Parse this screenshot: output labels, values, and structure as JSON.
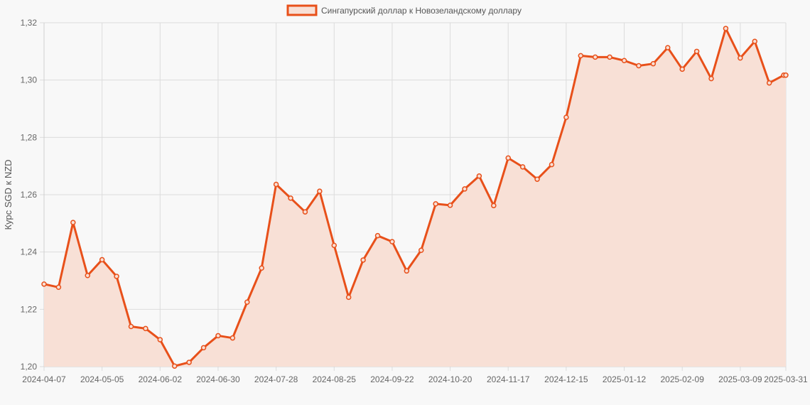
{
  "chart_data": {
    "type": "line",
    "title": "",
    "xlabel": "",
    "ylabel": "Курс SGD к NZD",
    "ylim": [
      1.2,
      1.32
    ],
    "y_ticks": [
      "1,20",
      "1,22",
      "1,24",
      "1,26",
      "1,28",
      "1,30",
      "1,32"
    ],
    "x_tick_labels": [
      "2024-04-07",
      "2024-05-05",
      "2024-06-02",
      "2024-06-30",
      "2024-07-28",
      "2024-08-25",
      "2024-09-22",
      "2024-10-20",
      "2024-11-17",
      "2024-12-15",
      "2025-01-12",
      "2025-02-09",
      "2025-03-09",
      "2025-03-31"
    ],
    "grid": true,
    "legend_position": "top",
    "x": [
      "2024-04-07",
      "2024-04-14",
      "2024-04-21",
      "2024-04-28",
      "2024-05-05",
      "2024-05-12",
      "2024-05-19",
      "2024-05-26",
      "2024-06-02",
      "2024-06-09",
      "2024-06-16",
      "2024-06-23",
      "2024-06-30",
      "2024-07-07",
      "2024-07-14",
      "2024-07-21",
      "2024-07-28",
      "2024-08-04",
      "2024-08-11",
      "2024-08-18",
      "2024-08-25",
      "2024-09-01",
      "2024-09-08",
      "2024-09-15",
      "2024-09-22",
      "2024-09-29",
      "2024-10-06",
      "2024-10-13",
      "2024-10-20",
      "2024-10-27",
      "2024-11-03",
      "2024-11-10",
      "2024-11-17",
      "2024-11-24",
      "2024-12-01",
      "2024-12-08",
      "2024-12-15",
      "2024-12-22",
      "2024-12-29",
      "2025-01-05",
      "2025-01-12",
      "2025-01-19",
      "2025-01-26",
      "2025-02-02",
      "2025-02-09",
      "2025-02-16",
      "2025-02-23",
      "2025-03-02",
      "2025-03-09",
      "2025-03-16",
      "2025-03-23",
      "2025-03-30",
      "2025-03-31"
    ],
    "series": [
      {
        "name": "Сингапурский доллар к Новозеландскому доллару",
        "color": "#e8501a",
        "fill": "#f8e0d6",
        "values": [
          1.2288,
          1.2277,
          1.2503,
          1.2318,
          1.2373,
          1.2315,
          1.214,
          1.2133,
          1.2094,
          1.2002,
          1.2015,
          1.2066,
          1.2108,
          1.21,
          1.2225,
          1.2344,
          1.2636,
          1.2588,
          1.254,
          1.2612,
          1.2423,
          1.2242,
          1.2372,
          1.2457,
          1.2436,
          1.2334,
          1.2406,
          1.2568,
          1.2563,
          1.262,
          1.2665,
          1.2562,
          1.2728,
          1.2697,
          1.2654,
          1.2705,
          1.287,
          1.3085,
          1.308,
          1.308,
          1.3068,
          1.305,
          1.3057,
          1.3113,
          1.3038,
          1.31,
          1.3005,
          1.318,
          1.3077,
          1.3135,
          1.299,
          1.3017,
          1.3017
        ]
      }
    ]
  }
}
